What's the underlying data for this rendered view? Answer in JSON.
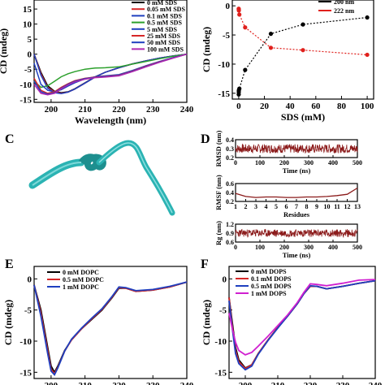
{
  "panels": {
    "C": {
      "letter": "C"
    },
    "D": {
      "letter": "D"
    },
    "E": {
      "letter": "E"
    },
    "F": {
      "letter": "F"
    }
  },
  "chart_data": [
    {
      "id": "A",
      "type": "line",
      "xlabel": "Wavelength (nm)",
      "ylabel": "CD (mdeg)",
      "xlim": [
        195,
        240
      ],
      "ylim": [
        -16,
        18
      ],
      "xticks": [
        200,
        210,
        220,
        230,
        240
      ],
      "yticks": [
        -15,
        -10,
        -5,
        0,
        5,
        10,
        15
      ],
      "legend_position": "top-right",
      "series": [
        {
          "name": "0 mM SDS",
          "color": "#000000",
          "x": [
            195,
            197,
            199,
            201,
            203,
            205,
            207,
            210,
            213,
            216,
            220,
            224,
            228,
            232,
            236,
            240
          ],
          "values": [
            0,
            -6,
            -10.5,
            -12.3,
            -12.8,
            -12.5,
            -11.5,
            -9.5,
            -7.5,
            -6,
            -4.5,
            -3.2,
            -2.2,
            -1.3,
            -0.6,
            0
          ]
        },
        {
          "name": "0.05 mM SDS",
          "color": "#d62728",
          "x": [
            195,
            197,
            199,
            201,
            203,
            205,
            207,
            210,
            213,
            216,
            220,
            224,
            228,
            232,
            236,
            240
          ],
          "values": [
            0,
            -6.5,
            -11,
            -12.5,
            -13,
            -12.6,
            -11.6,
            -9.6,
            -7.6,
            -6,
            -4.5,
            -3.2,
            -2.2,
            -1.3,
            -0.6,
            0
          ]
        },
        {
          "name": "0.1 mM SDS",
          "color": "#1f3fbf",
          "x": [
            195,
            197,
            199,
            201,
            203,
            205,
            207,
            210,
            213,
            216,
            220,
            224,
            228,
            232,
            236,
            240
          ],
          "values": [
            0,
            -7,
            -11.3,
            -12.8,
            -13.1,
            -12.6,
            -11.6,
            -9.6,
            -7.6,
            -6,
            -4.5,
            -3.2,
            -2.2,
            -1.3,
            -0.6,
            0
          ]
        },
        {
          "name": "0.5 mM SDS",
          "color": "#2ca02c",
          "x": [
            195,
            197,
            199,
            201,
            203,
            205,
            207,
            210,
            213,
            216,
            220,
            224,
            228,
            232,
            236,
            240
          ],
          "values": [
            -9,
            -11,
            -10.5,
            -9,
            -7.5,
            -6.5,
            -5.8,
            -5,
            -4.6,
            -4.5,
            -4.2,
            -3.3,
            -2.4,
            -1.5,
            -0.7,
            0
          ]
        },
        {
          "name": "5 mM SDS",
          "color": "#1f3fbf",
          "x": [
            195,
            197,
            199,
            201,
            203,
            205,
            207,
            210,
            213,
            216,
            220,
            224,
            228,
            232,
            236,
            240
          ],
          "values": [
            -3,
            -10,
            -12,
            -12.5,
            -11.8,
            -10.6,
            -9.5,
            -8.2,
            -7.5,
            -7.2,
            -6.8,
            -5.4,
            -3.8,
            -2.4,
            -1.1,
            0
          ]
        },
        {
          "name": "25 mM SDS",
          "color": "#d62728",
          "x": [
            195,
            197,
            199,
            201,
            203,
            205,
            207,
            210,
            213,
            216,
            220,
            224,
            228,
            232,
            236,
            240
          ],
          "values": [
            -8,
            -12,
            -13,
            -12.5,
            -11,
            -9.8,
            -8.8,
            -8,
            -7.6,
            -7.4,
            -7,
            -5.6,
            -4,
            -2.5,
            -1.2,
            0
          ]
        },
        {
          "name": "50 mM SDS",
          "color": "#1f3fbf",
          "x": [
            195,
            197,
            199,
            201,
            203,
            205,
            207,
            210,
            213,
            216,
            220,
            224,
            228,
            232,
            236,
            240
          ],
          "values": [
            -9,
            -12.5,
            -13.3,
            -12.8,
            -11.3,
            -10,
            -9,
            -8.1,
            -7.7,
            -7.5,
            -7.1,
            -5.7,
            -4.1,
            -2.6,
            -1.2,
            0
          ]
        },
        {
          "name": "100 mM SDS",
          "color": "#b027b0",
          "x": [
            195,
            197,
            199,
            201,
            203,
            205,
            207,
            210,
            213,
            216,
            220,
            224,
            228,
            232,
            236,
            240
          ],
          "values": [
            -10,
            -13,
            -13.5,
            -13,
            -11.5,
            -10.2,
            -9.2,
            -8.3,
            -7.8,
            -7.6,
            -7.2,
            -5.8,
            -4.2,
            -2.7,
            -1.3,
            0
          ]
        }
      ]
    },
    {
      "id": "B",
      "type": "line",
      "xlabel": "SDS (mM)",
      "ylabel": "CD (mdeg)",
      "xlim": [
        -5,
        105
      ],
      "ylim": [
        -16,
        1
      ],
      "xticks": [
        0,
        20,
        40,
        60,
        80,
        100
      ],
      "yticks": [
        0,
        -5,
        -10,
        -15
      ],
      "legend_position": "top-right",
      "series": [
        {
          "name": "200 nm",
          "color": "#000000",
          "x": [
            0,
            0.05,
            0.1,
            0.5,
            5,
            25,
            50,
            100
          ],
          "values": [
            -15.2,
            -14.8,
            -14.5,
            -14.2,
            -11,
            -4.8,
            -3.2,
            -2
          ]
        },
        {
          "name": "222 nm",
          "color": "#e0201c",
          "x": [
            0,
            0.05,
            0.1,
            0.5,
            5,
            25,
            50,
            100
          ],
          "values": [
            -0.5,
            -0.6,
            -0.8,
            -1.5,
            -3.7,
            -7.2,
            -7.6,
            -8.4
          ]
        }
      ]
    },
    {
      "id": "D-RMSD",
      "type": "line",
      "xlabel": "Time (ns)",
      "ylabel": "RMSD (nm)",
      "xlim": [
        0,
        500
      ],
      "ylim": [
        0.2,
        0.4
      ],
      "xticks": [
        0,
        100,
        200,
        300,
        400,
        500
      ],
      "ytick_labels": [
        "0.4",
        "0.3",
        "0.2"
      ],
      "series": [
        {
          "color": "#8b1a1a",
          "mean": 0.3,
          "noise": 0.05
        }
      ]
    },
    {
      "id": "D-RMSF",
      "type": "line",
      "xlabel": "Residues",
      "ylabel": "RMSF (nm)",
      "xlim": [
        1,
        13
      ],
      "ylim": [
        0.2,
        0.6
      ],
      "xticks": [
        1,
        2,
        3,
        4,
        5,
        6,
        7,
        8,
        9,
        10,
        11,
        12,
        13
      ],
      "ytick_labels": [
        "0.6",
        "0.4",
        "0.2"
      ],
      "series": [
        {
          "color": "#8b1a1a",
          "x": [
            1,
            2,
            3,
            4,
            5,
            6,
            7,
            8,
            9,
            10,
            11,
            12,
            13
          ],
          "values": [
            0.38,
            0.31,
            0.29,
            0.3,
            0.3,
            0.29,
            0.29,
            0.3,
            0.3,
            0.31,
            0.33,
            0.36,
            0.5
          ]
        }
      ]
    },
    {
      "id": "D-Rg",
      "type": "line",
      "xlabel": "Time (ns)",
      "ylabel": "Rg (nm)",
      "xlim": [
        0,
        500
      ],
      "ylim": [
        0.6,
        1.2
      ],
      "xticks": [
        0,
        100,
        200,
        300,
        400,
        500
      ],
      "ytick_labels": [
        "1.2",
        "0.9",
        "0.6"
      ],
      "series": [
        {
          "color": "#8b1a1a",
          "mean": 0.9,
          "noise": 0.13
        }
      ]
    },
    {
      "id": "E",
      "type": "line",
      "xlabel": "",
      "ylabel": "CD (mdeg)",
      "xlim": [
        195,
        240
      ],
      "ylim": [
        -16,
        2
      ],
      "xticks": [
        200,
        210,
        220,
        230,
        240
      ],
      "yticks": [
        0,
        -5,
        -10,
        -15
      ],
      "legend_position": "top-left",
      "series": [
        {
          "name": "0 mM DOPC",
          "color": "#000000",
          "x": [
            195,
            197,
            199,
            200,
            201,
            202,
            204,
            206,
            209,
            212,
            215,
            218,
            220,
            222,
            225,
            230,
            235,
            240
          ],
          "values": [
            -1,
            -5,
            -11,
            -14,
            -15,
            -14,
            -11.5,
            -9.8,
            -8,
            -6.5,
            -5,
            -3,
            -1.5,
            -1.5,
            -2,
            -1.8,
            -1.3,
            -0.5
          ]
        },
        {
          "name": "0.5 mM DOPC",
          "color": "#d62728",
          "x": [
            195,
            197,
            199,
            200,
            201,
            202,
            204,
            206,
            209,
            212,
            215,
            218,
            220,
            222,
            225,
            230,
            235,
            240
          ],
          "values": [
            -1,
            -5.5,
            -11.5,
            -14.5,
            -15.2,
            -14.2,
            -11.6,
            -9.8,
            -8,
            -6.4,
            -4.9,
            -2.9,
            -1.4,
            -1.5,
            -2,
            -1.8,
            -1.3,
            -0.5
          ]
        },
        {
          "name": "1 mM DOPC",
          "color": "#1f3fbf",
          "x": [
            195,
            197,
            199,
            200,
            201,
            202,
            204,
            206,
            209,
            212,
            215,
            218,
            220,
            222,
            225,
            230,
            235,
            240
          ],
          "values": [
            -1,
            -6,
            -12,
            -14.8,
            -15.4,
            -14.3,
            -11.6,
            -9.7,
            -7.9,
            -6.3,
            -4.8,
            -2.8,
            -1.3,
            -1.4,
            -1.9,
            -1.7,
            -1.2,
            -0.5
          ]
        }
      ]
    },
    {
      "id": "F",
      "type": "line",
      "xlabel": "",
      "ylabel": "CD (mdeg)",
      "xlim": [
        195,
        240
      ],
      "ylim": [
        -16,
        2
      ],
      "xticks": [
        200,
        210,
        220,
        230,
        240
      ],
      "yticks": [
        0,
        -5,
        -10,
        -15
      ],
      "legend_position": "top-left",
      "series": [
        {
          "name": "0 mM DOPS",
          "color": "#000000",
          "x": [
            195,
            196,
            197,
            198,
            200,
            202,
            204,
            207,
            210,
            213,
            216,
            218,
            220,
            222,
            225,
            230,
            235,
            240
          ],
          "values": [
            -3,
            -7,
            -11,
            -13,
            -14.3,
            -13.8,
            -12,
            -9.8,
            -7.8,
            -6,
            -4,
            -2.4,
            -1.2,
            -1.2,
            -1.6,
            -1.2,
            -0.7,
            -0.3
          ]
        },
        {
          "name": "0.1 mM DOPS",
          "color": "#d62728",
          "x": [
            195,
            196,
            197,
            198,
            200,
            202,
            204,
            207,
            210,
            213,
            216,
            218,
            220,
            222,
            225,
            230,
            235,
            240
          ],
          "values": [
            -3,
            -7.5,
            -11.5,
            -13.3,
            -14.4,
            -13.8,
            -12,
            -9.8,
            -7.8,
            -6,
            -4,
            -2.4,
            -1.2,
            -1.2,
            -1.6,
            -1.2,
            -0.7,
            -0.3
          ]
        },
        {
          "name": "0.5 mM DOPS",
          "color": "#1f3fbf",
          "x": [
            195,
            196,
            197,
            198,
            200,
            202,
            204,
            207,
            210,
            213,
            216,
            218,
            220,
            222,
            225,
            230,
            235,
            240
          ],
          "values": [
            -3.5,
            -8,
            -12,
            -13.6,
            -14.6,
            -14,
            -12.1,
            -9.9,
            -7.9,
            -6,
            -4,
            -2.4,
            -1.1,
            -1.2,
            -1.6,
            -1.2,
            -0.7,
            -0.3
          ]
        },
        {
          "name": "1 mM DOPS",
          "color": "#d020d0",
          "x": [
            195,
            196,
            197,
            198,
            200,
            202,
            204,
            207,
            210,
            213,
            216,
            218,
            220,
            222,
            225,
            230,
            235,
            240
          ],
          "values": [
            -5.5,
            -8,
            -10.2,
            -11.5,
            -12.2,
            -11.8,
            -10.8,
            -9.2,
            -7.5,
            -5.8,
            -3.8,
            -2.2,
            -0.8,
            -0.9,
            -1.1,
            -0.7,
            -0.2,
            -0.1
          ]
        }
      ]
    }
  ]
}
